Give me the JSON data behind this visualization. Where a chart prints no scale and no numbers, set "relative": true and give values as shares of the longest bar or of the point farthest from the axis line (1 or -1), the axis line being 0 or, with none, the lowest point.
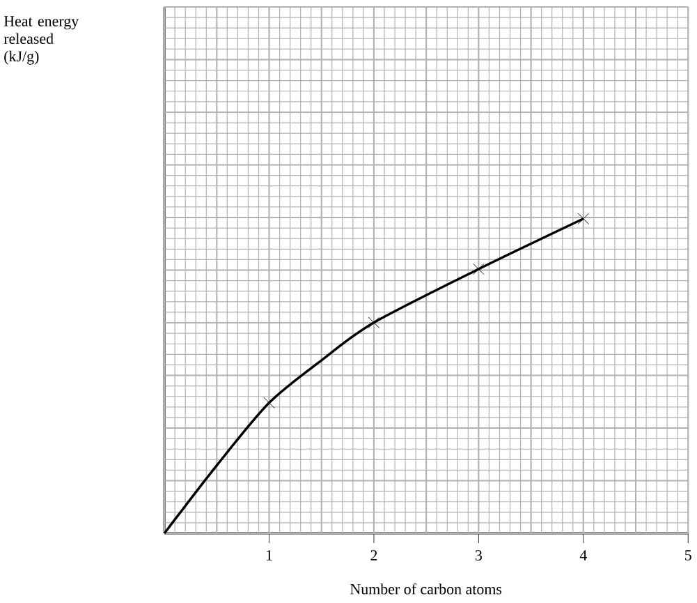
{
  "chart_data": {
    "type": "line",
    "relative": true,
    "xlabel": "Number of carbon atoms",
    "annotations": [
      "Heat energy released (kJ/g)"
    ],
    "xlim": [
      0,
      5
    ],
    "xticks": [
      1,
      2,
      3,
      4,
      5
    ],
    "grid": true,
    "tick_labels": "x",
    "series": [
      {
        "type": "line",
        "color": "#000000",
        "marker": "none",
        "x": [
          0,
          0.5,
          1,
          1.5,
          2,
          3,
          4
        ],
        "values": [
          0,
          0.216,
          0.415,
          0.55,
          0.67,
          0.84,
          1
        ]
      },
      {
        "type": "scatter",
        "color": "#000000",
        "marker": "cross",
        "x": [
          1,
          2,
          3,
          4
        ],
        "values": [
          0.415,
          0.67,
          0.84,
          1
        ]
      }
    ]
  }
}
